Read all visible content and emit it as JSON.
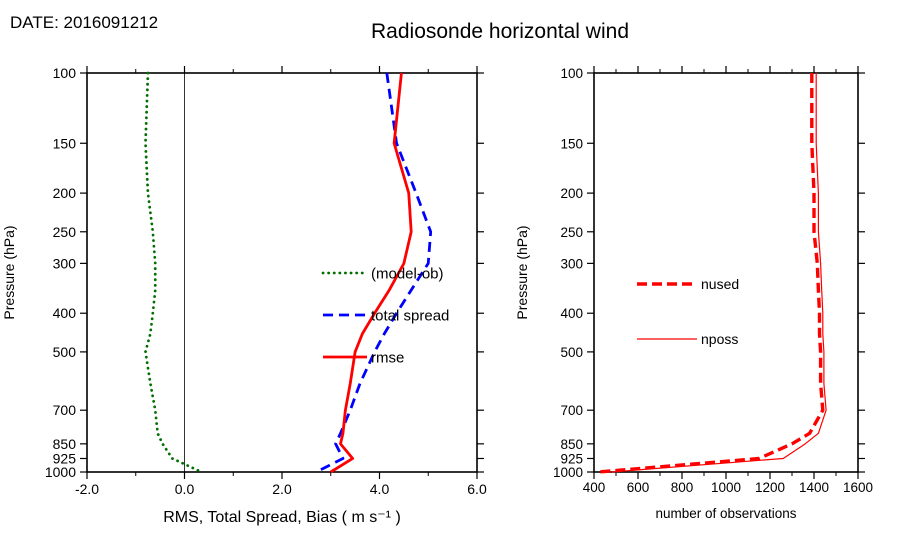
{
  "header": {
    "date_label": "DATE: 2016091212",
    "title": "Radiosonde horizontal wind"
  },
  "chart_data": [
    {
      "id": "wind-stats",
      "type": "line",
      "title": "",
      "xlabel": "RMS, Total Spread, Bias ( m s⁻¹ )",
      "ylabel": "Pressure (hPa)",
      "xlim": [
        -2.0,
        6.0
      ],
      "ylim": [
        100,
        1000
      ],
      "yscale": "log",
      "zero_line": true,
      "xticks": {
        "values": [
          -2,
          0,
          2,
          4,
          6
        ],
        "labels": [
          "-2.0",
          "0.0",
          "2.0",
          "4.0",
          "6.0"
        ]
      },
      "xminor": [
        -1,
        1,
        3,
        5
      ],
      "yticks": {
        "values": [
          100,
          150,
          200,
          250,
          300,
          400,
          500,
          700,
          850,
          925,
          1000
        ],
        "labels": [
          "100",
          "150",
          "200",
          "250",
          "300",
          "400",
          "500",
          "700",
          "850",
          "925",
          "1000"
        ]
      },
      "pressure_levels": [
        100,
        150,
        200,
        250,
        300,
        350,
        400,
        450,
        500,
        600,
        700,
        800,
        850,
        925,
        1000
      ],
      "series": [
        {
          "name": "(model-ob)",
          "color": "#006f00",
          "style": "dotted",
          "values": [
            -0.75,
            -0.8,
            -0.75,
            -0.65,
            -0.6,
            -0.6,
            -0.65,
            -0.7,
            -0.8,
            -0.7,
            -0.6,
            -0.55,
            -0.45,
            -0.25,
            0.35
          ]
        },
        {
          "name": "total spread",
          "color": "#0000ff",
          "style": "dashed",
          "values": [
            4.15,
            4.35,
            4.75,
            5.05,
            5.0,
            4.65,
            4.35,
            4.1,
            3.9,
            3.6,
            3.4,
            3.2,
            3.1,
            3.25,
            2.7
          ]
        },
        {
          "name": "rmse",
          "color": "#ff0000",
          "style": "solid",
          "values": [
            4.45,
            4.3,
            4.6,
            4.65,
            4.5,
            4.2,
            3.9,
            3.65,
            3.5,
            3.4,
            3.3,
            3.25,
            3.2,
            3.45,
            3.0
          ]
        }
      ]
    },
    {
      "id": "obs-count",
      "type": "line",
      "title": "",
      "xlabel": "number of observations",
      "ylabel": "Pressure (hPa)",
      "xlim": [
        400,
        1600
      ],
      "ylim": [
        100,
        1000
      ],
      "yscale": "log",
      "zero_line": false,
      "xticks": {
        "values": [
          400,
          600,
          800,
          1000,
          1200,
          1400,
          1600
        ],
        "labels": [
          "400",
          "600",
          "800",
          "1000",
          "1200",
          "1400",
          "1600"
        ]
      },
      "xminor": [
        500,
        700,
        900,
        1100,
        1300,
        1500
      ],
      "yticks": {
        "values": [
          100,
          150,
          200,
          250,
          300,
          400,
          500,
          700,
          850,
          925,
          1000
        ],
        "labels": [
          "100",
          "150",
          "200",
          "250",
          "300",
          "400",
          "500",
          "700",
          "850",
          "925",
          "1000"
        ]
      },
      "pressure_levels": [
        100,
        150,
        200,
        250,
        300,
        350,
        400,
        450,
        500,
        600,
        700,
        800,
        850,
        925,
        1000
      ],
      "series": [
        {
          "name": "nused",
          "color": "#ff0000",
          "style": "thick-dashed",
          "values": [
            1390,
            1390,
            1400,
            1400,
            1415,
            1420,
            1425,
            1425,
            1430,
            1430,
            1440,
            1380,
            1300,
            1150,
            420
          ]
        },
        {
          "name": "nposs",
          "color": "#ff0000",
          "style": "thin-solid",
          "values": [
            1410,
            1410,
            1420,
            1420,
            1430,
            1435,
            1440,
            1440,
            1445,
            1445,
            1455,
            1420,
            1360,
            1260,
            480
          ]
        }
      ]
    }
  ]
}
